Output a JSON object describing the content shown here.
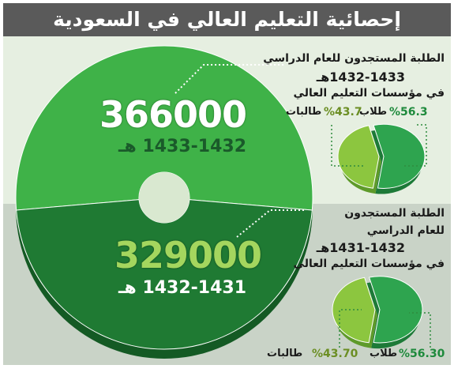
{
  "header": {
    "title": "إحصائية التعليم العالي في السعودية"
  },
  "top": {
    "total": "366000",
    "year": "1433-1432 هـ",
    "desc_line1": "الطلبة المستجدون للعام الدراسي",
    "desc_line2": "1432-1433هـ",
    "desc_line3": "في مؤسسات التعليم العالي",
    "male_pct": "%56.3",
    "male_label": "طلاب",
    "female_pct": "%43.7",
    "female_label": "طالبات"
  },
  "bottom": {
    "total": "329000",
    "year": "1432-1431 هـ",
    "desc_line1": "الطلبة المستجدون",
    "desc_line2": "للعام الدراسي",
    "desc_line3": "1431-1432هـ",
    "desc_line4": "في مؤسسات التعليم العالي",
    "male_pct": "%56.30",
    "male_label": "طلاب",
    "female_pct": "%43.70",
    "female_label": "طالبات"
  },
  "colors": {
    "donut_light": "#3fb248",
    "donut_dark": "#1f7a33",
    "pie_male": "#2ea44f",
    "pie_female": "#8cc63f",
    "pct_green": "#1e8a3c",
    "pct_olive": "#6b8e23"
  },
  "chart_data": [
    {
      "type": "pie",
      "categories": [
        "1433-1432 هـ",
        "1432-1431 هـ"
      ],
      "values": [
        366000,
        329000
      ]
    },
    {
      "type": "pie",
      "title": "الطلبة المستجدون للعام الدراسي 1432-1433هـ في مؤسسات التعليم العالي",
      "categories": [
        "طلاب",
        "طالبات"
      ],
      "values": [
        56.3,
        43.7
      ]
    },
    {
      "type": "pie",
      "title": "الطلبة المستجدون للعام الدراسي 1431-1432هـ في مؤسسات التعليم العالي",
      "categories": [
        "طلاب",
        "طالبات"
      ],
      "values": [
        56.3,
        43.7
      ]
    }
  ]
}
